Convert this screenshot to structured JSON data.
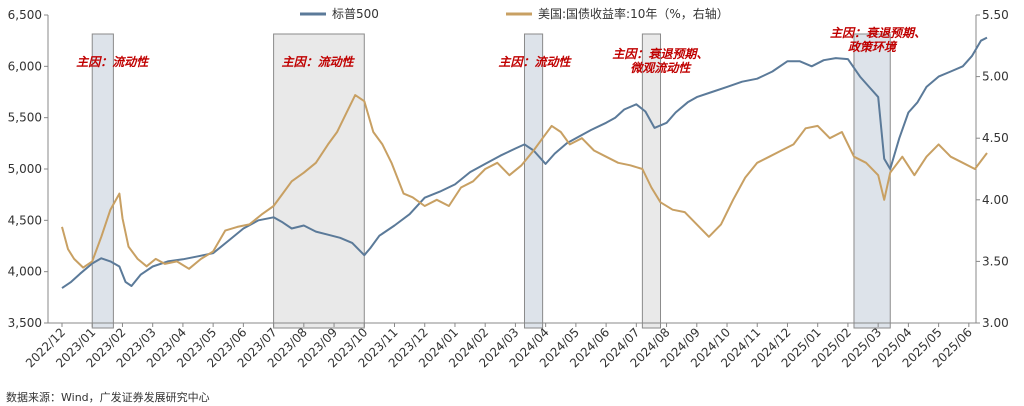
{
  "chart_data": {
    "type": "line",
    "legend": {
      "position": "top-center"
    },
    "grid": false,
    "y_left": {
      "min": 3500,
      "max": 6500,
      "ticks": [
        3500,
        4000,
        4500,
        5000,
        5500,
        6000,
        6500
      ],
      "tick_labels": [
        "3,500",
        "4,000",
        "4,500",
        "5,000",
        "5,500",
        "6,000",
        "6,500"
      ]
    },
    "y_right": {
      "min": 3.0,
      "max": 5.5,
      "ticks": [
        3.0,
        3.5,
        4.0,
        4.5,
        5.0,
        5.5
      ],
      "tick_labels": [
        "3.00",
        "3.50",
        "4.00",
        "4.50",
        "5.00",
        "5.50"
      ]
    },
    "x_labels": [
      "2022/12",
      "2023/01",
      "2023/02",
      "2023/03",
      "2023/04",
      "2023/05",
      "2023/06",
      "2023/07",
      "2023/08",
      "2023/09",
      "2023/10",
      "2023/11",
      "2023/12",
      "2024/01",
      "2024/02",
      "2024/03",
      "2024/04",
      "2024/05",
      "2024/06",
      "2024/07",
      "2024/08",
      "2024/09",
      "2024/10",
      "2024/11",
      "2024/12",
      "2025/01",
      "2025/02",
      "2025/03",
      "2025/04",
      "2025/05",
      "2025/06"
    ],
    "series": [
      {
        "name": "标普500",
        "axis": "left",
        "color": "#5b7a99",
        "points": [
          [
            0,
            3840
          ],
          [
            0.3,
            3900
          ],
          [
            0.6,
            3980
          ],
          [
            1.0,
            4080
          ],
          [
            1.3,
            4130
          ],
          [
            1.6,
            4100
          ],
          [
            1.9,
            4050
          ],
          [
            2.1,
            3900
          ],
          [
            2.3,
            3860
          ],
          [
            2.6,
            3970
          ],
          [
            3.0,
            4050
          ],
          [
            3.5,
            4100
          ],
          [
            4.0,
            4120
          ],
          [
            4.5,
            4150
          ],
          [
            5.0,
            4180
          ],
          [
            5.5,
            4300
          ],
          [
            6.0,
            4420
          ],
          [
            6.5,
            4500
          ],
          [
            7.0,
            4530
          ],
          [
            7.3,
            4480
          ],
          [
            7.6,
            4420
          ],
          [
            8.0,
            4450
          ],
          [
            8.4,
            4390
          ],
          [
            8.8,
            4360
          ],
          [
            9.2,
            4330
          ],
          [
            9.6,
            4280
          ],
          [
            10.0,
            4160
          ],
          [
            10.2,
            4230
          ],
          [
            10.5,
            4350
          ],
          [
            11.0,
            4450
          ],
          [
            11.5,
            4560
          ],
          [
            12.0,
            4720
          ],
          [
            12.5,
            4780
          ],
          [
            13.0,
            4850
          ],
          [
            13.5,
            4970
          ],
          [
            14.0,
            5050
          ],
          [
            14.5,
            5130
          ],
          [
            15.0,
            5200
          ],
          [
            15.3,
            5240
          ],
          [
            15.6,
            5180
          ],
          [
            16.0,
            5050
          ],
          [
            16.3,
            5150
          ],
          [
            16.7,
            5250
          ],
          [
            17.0,
            5300
          ],
          [
            17.5,
            5380
          ],
          [
            18.0,
            5450
          ],
          [
            18.3,
            5500
          ],
          [
            18.6,
            5580
          ],
          [
            19.0,
            5630
          ],
          [
            19.3,
            5560
          ],
          [
            19.6,
            5400
          ],
          [
            20.0,
            5450
          ],
          [
            20.3,
            5550
          ],
          [
            20.7,
            5650
          ],
          [
            21.0,
            5700
          ],
          [
            21.5,
            5750
          ],
          [
            22.0,
            5800
          ],
          [
            22.5,
            5850
          ],
          [
            23.0,
            5880
          ],
          [
            23.5,
            5950
          ],
          [
            24.0,
            6050
          ],
          [
            24.4,
            6050
          ],
          [
            24.8,
            6000
          ],
          [
            25.2,
            6060
          ],
          [
            25.6,
            6080
          ],
          [
            26.0,
            6070
          ],
          [
            26.4,
            5900
          ],
          [
            26.7,
            5800
          ],
          [
            27.0,
            5700
          ],
          [
            27.2,
            5100
          ],
          [
            27.4,
            5000
          ],
          [
            27.7,
            5300
          ],
          [
            28.0,
            5550
          ],
          [
            28.3,
            5650
          ],
          [
            28.6,
            5800
          ],
          [
            29.0,
            5900
          ],
          [
            29.4,
            5950
          ],
          [
            29.8,
            6000
          ],
          [
            30.1,
            6100
          ],
          [
            30.4,
            6250
          ],
          [
            30.6,
            6280
          ]
        ]
      },
      {
        "name": "美国:国债收益率:10年（%，右轴）",
        "axis": "right",
        "color": "#c8a063",
        "points": [
          [
            0,
            3.78
          ],
          [
            0.2,
            3.6
          ],
          [
            0.4,
            3.52
          ],
          [
            0.7,
            3.45
          ],
          [
            1.0,
            3.5
          ],
          [
            1.3,
            3.7
          ],
          [
            1.6,
            3.92
          ],
          [
            1.9,
            4.05
          ],
          [
            2.0,
            3.85
          ],
          [
            2.2,
            3.62
          ],
          [
            2.5,
            3.52
          ],
          [
            2.8,
            3.46
          ],
          [
            3.1,
            3.52
          ],
          [
            3.4,
            3.48
          ],
          [
            3.8,
            3.5
          ],
          [
            4.2,
            3.44
          ],
          [
            4.6,
            3.52
          ],
          [
            5.0,
            3.58
          ],
          [
            5.4,
            3.75
          ],
          [
            5.8,
            3.78
          ],
          [
            6.2,
            3.8
          ],
          [
            6.6,
            3.88
          ],
          [
            7.0,
            3.95
          ],
          [
            7.3,
            4.05
          ],
          [
            7.6,
            4.15
          ],
          [
            8.0,
            4.22
          ],
          [
            8.4,
            4.3
          ],
          [
            8.8,
            4.45
          ],
          [
            9.1,
            4.55
          ],
          [
            9.4,
            4.7
          ],
          [
            9.7,
            4.85
          ],
          [
            10.0,
            4.8
          ],
          [
            10.3,
            4.55
          ],
          [
            10.6,
            4.45
          ],
          [
            10.9,
            4.3
          ],
          [
            11.3,
            4.05
          ],
          [
            11.6,
            4.02
          ],
          [
            12.0,
            3.95
          ],
          [
            12.4,
            4.0
          ],
          [
            12.8,
            3.95
          ],
          [
            13.2,
            4.1
          ],
          [
            13.6,
            4.15
          ],
          [
            14.0,
            4.25
          ],
          [
            14.4,
            4.3
          ],
          [
            14.8,
            4.2
          ],
          [
            15.2,
            4.28
          ],
          [
            15.6,
            4.4
          ],
          [
            15.9,
            4.5
          ],
          [
            16.2,
            4.6
          ],
          [
            16.5,
            4.55
          ],
          [
            16.8,
            4.45
          ],
          [
            17.2,
            4.5
          ],
          [
            17.6,
            4.4
          ],
          [
            18.0,
            4.35
          ],
          [
            18.4,
            4.3
          ],
          [
            18.8,
            4.28
          ],
          [
            19.2,
            4.25
          ],
          [
            19.5,
            4.1
          ],
          [
            19.8,
            3.98
          ],
          [
            20.2,
            3.92
          ],
          [
            20.6,
            3.9
          ],
          [
            21.0,
            3.8
          ],
          [
            21.4,
            3.7
          ],
          [
            21.8,
            3.8
          ],
          [
            22.2,
            4.0
          ],
          [
            22.6,
            4.18
          ],
          [
            23.0,
            4.3
          ],
          [
            23.4,
            4.35
          ],
          [
            23.8,
            4.4
          ],
          [
            24.2,
            4.45
          ],
          [
            24.6,
            4.58
          ],
          [
            25.0,
            4.6
          ],
          [
            25.4,
            4.5
          ],
          [
            25.8,
            4.55
          ],
          [
            26.2,
            4.35
          ],
          [
            26.6,
            4.3
          ],
          [
            27.0,
            4.2
          ],
          [
            27.2,
            4.0
          ],
          [
            27.4,
            4.22
          ],
          [
            27.8,
            4.35
          ],
          [
            28.2,
            4.2
          ],
          [
            28.6,
            4.35
          ],
          [
            29.0,
            4.45
          ],
          [
            29.4,
            4.35
          ],
          [
            29.8,
            4.3
          ],
          [
            30.2,
            4.25
          ],
          [
            30.6,
            4.38
          ]
        ]
      }
    ],
    "shaded_periods": [
      {
        "start": 1.0,
        "end": 1.7,
        "label": "主因：流动性"
      },
      {
        "start": 7.0,
        "end": 10.0,
        "label": "主因：流动性"
      },
      {
        "start": 15.3,
        "end": 15.9,
        "label": "主因：流动性"
      },
      {
        "start": 19.2,
        "end": 19.8,
        "label": "主因：衰退预期、微观流动性"
      },
      {
        "start": 26.2,
        "end": 27.4,
        "label": "主因：衰退预期、政策环境"
      }
    ]
  },
  "source_note": "数据来源：Wind，广发证券发展研究中心"
}
